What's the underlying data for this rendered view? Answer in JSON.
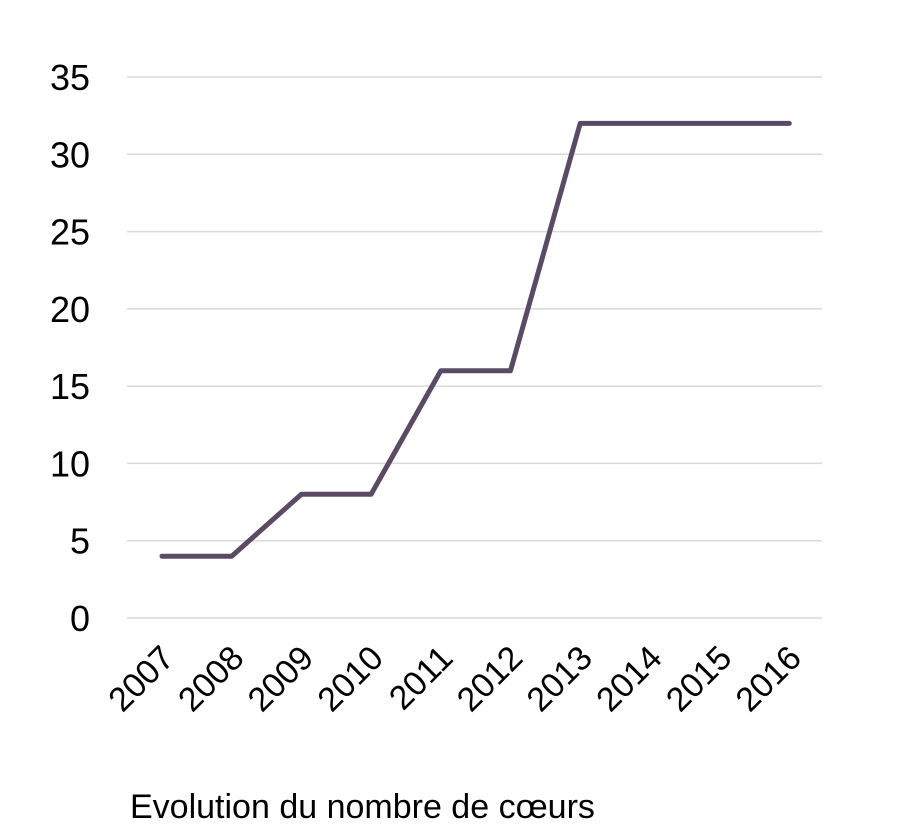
{
  "chart_data": {
    "type": "line",
    "x": [
      "2007",
      "2008",
      "2009",
      "2010",
      "2011",
      "2012",
      "2013",
      "2014",
      "2015",
      "2016"
    ],
    "series": [
      {
        "values": [
          4,
          4,
          8,
          8,
          16,
          16,
          32,
          32,
          32,
          32
        ],
        "color": "#5b4a63"
      }
    ],
    "ylim": [
      0,
      35
    ],
    "yticks": [
      0,
      5,
      10,
      15,
      20,
      25,
      30,
      35
    ],
    "grid": true,
    "gridline_color": "#d9d9d9",
    "xtick_rotation": "45 degrees",
    "footer_text": "Evolution du nombre de cœurs"
  }
}
